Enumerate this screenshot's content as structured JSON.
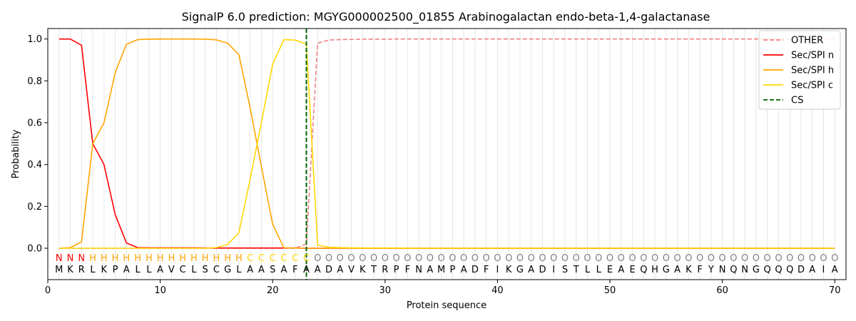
{
  "chart_data": {
    "type": "line",
    "title": "SignalP 6.0 prediction: MGYG000002500_01855 Arabinogalactan endo-beta-1,4-galactanase",
    "xlabel": "Protein sequence",
    "ylabel": "Probability",
    "xlim": [
      0,
      71
    ],
    "ylim": [
      -0.15,
      1.05
    ],
    "xticks": [
      0,
      10,
      20,
      30,
      40,
      50,
      60,
      70
    ],
    "yticks": [
      0.0,
      0.2,
      0.4,
      0.6,
      0.8,
      1.0
    ],
    "xtick_labels": [
      "0",
      "10",
      "20",
      "30",
      "40",
      "50",
      "60",
      "70"
    ],
    "ytick_labels": [
      "0.0",
      "0.2",
      "0.4",
      "0.6",
      "0.8",
      "1.0"
    ],
    "grid": "vertical lines at each residue",
    "legend_position": "top-right",
    "sequence": "MKRLKPALLAVCLSCGLAASAFAADAVKTRPFNAMPADFIKGADISTLLEAEQHGAKFYNQNGQQQDAIA",
    "labels": "NNNHHHHHHHHHHHHHHCCCCCCOOOOOOOOOOOOOOOOOOOOOOOOOOOOOOOOOOOOOOOOOOOOOOO",
    "label_colors": {
      "N": "#ff0000",
      "H": "#ffa500",
      "C": "#ffd700",
      "O": "#808080"
    },
    "series": [
      {
        "name": "OTHER",
        "color": "#f08080",
        "dash": "dashed",
        "values": [
          0,
          0,
          0,
          0,
          0,
          0,
          0,
          0,
          0,
          0,
          0,
          0,
          0,
          0,
          0,
          0,
          0,
          0,
          0,
          0,
          0,
          0,
          0.02,
          0.98,
          0.995,
          0.997,
          0.998,
          0.999,
          0.999,
          0.999,
          1,
          1,
          1,
          1,
          1,
          1,
          1,
          1,
          1,
          1,
          1,
          1,
          1,
          1,
          1,
          1,
          1,
          1,
          1,
          1,
          1,
          1,
          1,
          1,
          1,
          1,
          1,
          1,
          1,
          1,
          1,
          1,
          1,
          1,
          1,
          1,
          1,
          1,
          1,
          1
        ]
      },
      {
        "name": "Sec/SPI n",
        "color": "#ff0000",
        "dash": "solid",
        "values": [
          1.0,
          1.0,
          0.97,
          0.5,
          0.4,
          0.16,
          0.025,
          0.003,
          0.002,
          0.002,
          0.002,
          0.002,
          0.002,
          0.001,
          0.001,
          0.001,
          0.001,
          0.001,
          0.001,
          0.001,
          0.001,
          0.001,
          0,
          0,
          0,
          0,
          0,
          0,
          0,
          0,
          0,
          0,
          0,
          0,
          0,
          0,
          0,
          0,
          0,
          0,
          0,
          0,
          0,
          0,
          0,
          0,
          0,
          0,
          0,
          0,
          0,
          0,
          0,
          0,
          0,
          0,
          0,
          0,
          0,
          0,
          0,
          0,
          0,
          0,
          0,
          0,
          0,
          0,
          0,
          0
        ]
      },
      {
        "name": "Sec/SPI h",
        "color": "#ffa500",
        "dash": "solid",
        "values": [
          0,
          0.003,
          0.03,
          0.5,
          0.6,
          0.84,
          0.975,
          0.997,
          0.999,
          1.0,
          1.0,
          1.0,
          1.0,
          0.999,
          0.996,
          0.98,
          0.925,
          0.67,
          0.39,
          0.115,
          0.002,
          0.001,
          0,
          0,
          0,
          0,
          0,
          0,
          0,
          0,
          0,
          0,
          0,
          0,
          0,
          0,
          0,
          0,
          0,
          0,
          0,
          0,
          0,
          0,
          0,
          0,
          0,
          0,
          0,
          0,
          0,
          0,
          0,
          0,
          0,
          0,
          0,
          0,
          0,
          0,
          0,
          0,
          0,
          0,
          0,
          0,
          0,
          0,
          0,
          0
        ]
      },
      {
        "name": "Sec/SPI c",
        "color": "#ffd700",
        "dash": "solid",
        "values": [
          0,
          0,
          0,
          0,
          0,
          0,
          0,
          0,
          0,
          0,
          0,
          0,
          0,
          0,
          0.003,
          0.018,
          0.075,
          0.33,
          0.6,
          0.88,
          0.997,
          0.995,
          0.975,
          0.015,
          0.005,
          0.003,
          0.002,
          0.001,
          0.001,
          0.001,
          0.001,
          0,
          0,
          0,
          0,
          0,
          0,
          0,
          0,
          0,
          0,
          0,
          0,
          0,
          0,
          0,
          0,
          0,
          0,
          0,
          0,
          0,
          0,
          0,
          0,
          0,
          0,
          0,
          0,
          0,
          0,
          0,
          0,
          0,
          0,
          0,
          0,
          0,
          0,
          0
        ]
      }
    ],
    "cs": {
      "name": "CS",
      "color": "#006400",
      "x": 23
    }
  }
}
